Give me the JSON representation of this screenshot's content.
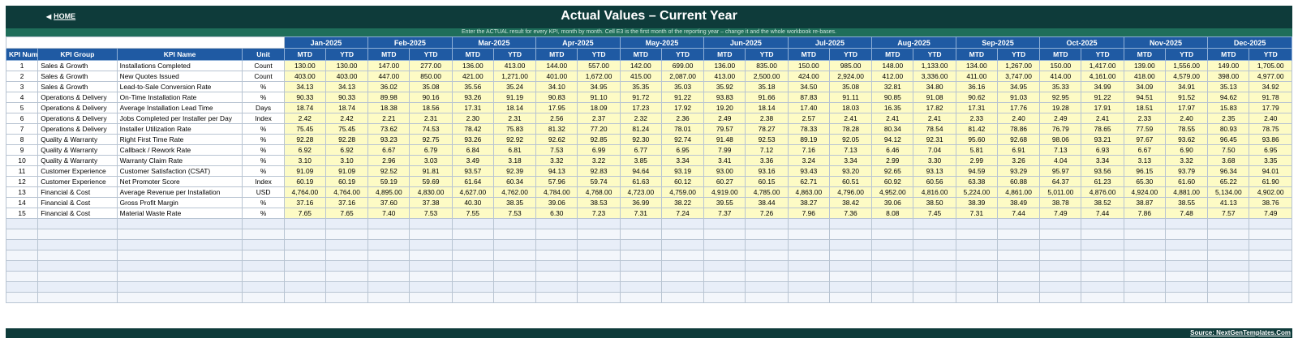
{
  "header": {
    "home_label": "HOME",
    "title": "Actual Values  –  Current Year",
    "subtitle": "Enter the ACTUAL result for every KPI, month by month. Cell E3 is the first month of the reporting year – change it and the whole workbook re-bases."
  },
  "columns": {
    "kpi_number": "KPI Number",
    "kpi_group": "KPI Group",
    "kpi_name": "KPI Name",
    "unit": "Unit",
    "mtd": "MTD",
    "ytd": "YTD"
  },
  "months": [
    "Jan-2025",
    "Feb-2025",
    "Mar-2025",
    "Apr-2025",
    "May-2025",
    "Jun-2025",
    "Jul-2025",
    "Aug-2025",
    "Sep-2025",
    "Oct-2025",
    "Nov-2025",
    "Dec-2025"
  ],
  "rows": [
    {
      "num": "1",
      "group": "Sales & Growth",
      "name": "Installations Completed",
      "unit": "Count",
      "values": [
        "130.00",
        "130.00",
        "147.00",
        "277.00",
        "136.00",
        "413.00",
        "144.00",
        "557.00",
        "142.00",
        "699.00",
        "136.00",
        "835.00",
        "150.00",
        "985.00",
        "148.00",
        "1,133.00",
        "134.00",
        "1,267.00",
        "150.00",
        "1,417.00",
        "139.00",
        "1,556.00",
        "149.00",
        "1,705.00"
      ]
    },
    {
      "num": "2",
      "group": "Sales & Growth",
      "name": "New Quotes Issued",
      "unit": "Count",
      "values": [
        "403.00",
        "403.00",
        "447.00",
        "850.00",
        "421.00",
        "1,271.00",
        "401.00",
        "1,672.00",
        "415.00",
        "2,087.00",
        "413.00",
        "2,500.00",
        "424.00",
        "2,924.00",
        "412.00",
        "3,336.00",
        "411.00",
        "3,747.00",
        "414.00",
        "4,161.00",
        "418.00",
        "4,579.00",
        "398.00",
        "4,977.00"
      ]
    },
    {
      "num": "3",
      "group": "Sales & Growth",
      "name": "Lead-to-Sale Conversion Rate",
      "unit": "%",
      "values": [
        "34.13",
        "34.13",
        "36.02",
        "35.08",
        "35.56",
        "35.24",
        "34.10",
        "34.95",
        "35.35",
        "35.03",
        "35.92",
        "35.18",
        "34.50",
        "35.08",
        "32.81",
        "34.80",
        "36.16",
        "34.95",
        "35.33",
        "34.99",
        "34.09",
        "34.91",
        "35.13",
        "34.92"
      ]
    },
    {
      "num": "4",
      "group": "Operations & Delivery",
      "name": "On-Time Installation Rate",
      "unit": "%",
      "values": [
        "90.33",
        "90.33",
        "89.98",
        "90.16",
        "93.26",
        "91.19",
        "90.83",
        "91.10",
        "91.72",
        "91.22",
        "93.83",
        "91.66",
        "87.83",
        "91.11",
        "90.85",
        "91.08",
        "90.62",
        "91.03",
        "92.95",
        "91.22",
        "94.51",
        "91.52",
        "94.62",
        "91.78"
      ]
    },
    {
      "num": "5",
      "group": "Operations & Delivery",
      "name": "Average Installation Lead Time",
      "unit": "Days",
      "values": [
        "18.74",
        "18.74",
        "18.38",
        "18.56",
        "17.31",
        "18.14",
        "17.95",
        "18.09",
        "17.23",
        "17.92",
        "19.20",
        "18.14",
        "17.40",
        "18.03",
        "16.35",
        "17.82",
        "17.31",
        "17.76",
        "19.28",
        "17.91",
        "18.51",
        "17.97",
        "15.83",
        "17.79"
      ]
    },
    {
      "num": "6",
      "group": "Operations & Delivery",
      "name": "Jobs Completed per Installer per Day",
      "unit": "Index",
      "values": [
        "2.42",
        "2.42",
        "2.21",
        "2.31",
        "2.30",
        "2.31",
        "2.56",
        "2.37",
        "2.32",
        "2.36",
        "2.49",
        "2.38",
        "2.57",
        "2.41",
        "2.41",
        "2.41",
        "2.33",
        "2.40",
        "2.49",
        "2.41",
        "2.33",
        "2.40",
        "2.35",
        "2.40"
      ]
    },
    {
      "num": "7",
      "group": "Operations & Delivery",
      "name": "Installer Utilization Rate",
      "unit": "%",
      "values": [
        "75.45",
        "75.45",
        "73.62",
        "74.53",
        "78.42",
        "75.83",
        "81.32",
        "77.20",
        "81.24",
        "78.01",
        "79.57",
        "78.27",
        "78.33",
        "78.28",
        "80.34",
        "78.54",
        "81.42",
        "78.86",
        "76.79",
        "78.65",
        "77.59",
        "78.55",
        "80.93",
        "78.75"
      ]
    },
    {
      "num": "8",
      "group": "Quality & Warranty",
      "name": "Right First Time Rate",
      "unit": "%",
      "values": [
        "92.28",
        "92.28",
        "93.23",
        "92.75",
        "93.26",
        "92.92",
        "92.62",
        "92.85",
        "92.30",
        "92.74",
        "91.48",
        "92.53",
        "89.19",
        "92.05",
        "94.12",
        "92.31",
        "95.60",
        "92.68",
        "98.06",
        "93.21",
        "97.67",
        "93.62",
        "96.45",
        "93.86"
      ]
    },
    {
      "num": "9",
      "group": "Quality & Warranty",
      "name": "Callback / Rework Rate",
      "unit": "%",
      "values": [
        "6.92",
        "6.92",
        "6.67",
        "6.79",
        "6.84",
        "6.81",
        "7.53",
        "6.99",
        "6.77",
        "6.95",
        "7.99",
        "7.12",
        "7.16",
        "7.13",
        "6.46",
        "7.04",
        "5.81",
        "6.91",
        "7.13",
        "6.93",
        "6.67",
        "6.90",
        "7.50",
        "6.95"
      ]
    },
    {
      "num": "10",
      "group": "Quality & Warranty",
      "name": "Warranty Claim Rate",
      "unit": "%",
      "values": [
        "3.10",
        "3.10",
        "2.96",
        "3.03",
        "3.49",
        "3.18",
        "3.32",
        "3.22",
        "3.85",
        "3.34",
        "3.41",
        "3.36",
        "3.24",
        "3.34",
        "2.99",
        "3.30",
        "2.99",
        "3.26",
        "4.04",
        "3.34",
        "3.13",
        "3.32",
        "3.68",
        "3.35"
      ]
    },
    {
      "num": "11",
      "group": "Customer Experience",
      "name": "Customer Satisfaction (CSAT)",
      "unit": "%",
      "values": [
        "91.09",
        "91.09",
        "92.52",
        "91.81",
        "93.57",
        "92.39",
        "94.13",
        "92.83",
        "94.64",
        "93.19",
        "93.00",
        "93.16",
        "93.43",
        "93.20",
        "92.65",
        "93.13",
        "94.59",
        "93.29",
        "95.97",
        "93.56",
        "96.15",
        "93.79",
        "96.34",
        "94.01"
      ]
    },
    {
      "num": "12",
      "group": "Customer Experience",
      "name": "Net Promoter Score",
      "unit": "Index",
      "values": [
        "60.19",
        "60.19",
        "59.19",
        "59.69",
        "61.64",
        "60.34",
        "57.96",
        "59.74",
        "61.63",
        "60.12",
        "60.27",
        "60.15",
        "62.71",
        "60.51",
        "60.92",
        "60.56",
        "63.38",
        "60.88",
        "64.37",
        "61.23",
        "65.30",
        "61.60",
        "65.22",
        "61.90"
      ]
    },
    {
      "num": "13",
      "group": "Financial & Cost",
      "name": "Average Revenue per Installation",
      "unit": "USD",
      "values": [
        "4,764.00",
        "4,764.00",
        "4,895.00",
        "4,830.00",
        "4,627.00",
        "4,762.00",
        "4,784.00",
        "4,768.00",
        "4,723.00",
        "4,759.00",
        "4,919.00",
        "4,785.00",
        "4,863.00",
        "4,796.00",
        "4,952.00",
        "4,816.00",
        "5,224.00",
        "4,861.00",
        "5,011.00",
        "4,876.00",
        "4,924.00",
        "4,881.00",
        "5,134.00",
        "4,902.00"
      ]
    },
    {
      "num": "14",
      "group": "Financial & Cost",
      "name": "Gross Profit Margin",
      "unit": "%",
      "values": [
        "37.16",
        "37.16",
        "37.60",
        "37.38",
        "40.30",
        "38.35",
        "39.06",
        "38.53",
        "36.99",
        "38.22",
        "39.55",
        "38.44",
        "38.27",
        "38.42",
        "39.06",
        "38.50",
        "38.39",
        "38.49",
        "38.78",
        "38.52",
        "38.87",
        "38.55",
        "41.13",
        "38.76"
      ]
    },
    {
      "num": "15",
      "group": "Financial & Cost",
      "name": "Material Waste Rate",
      "unit": "%",
      "values": [
        "7.65",
        "7.65",
        "7.40",
        "7.53",
        "7.55",
        "7.53",
        "6.30",
        "7.23",
        "7.31",
        "7.24",
        "7.37",
        "7.26",
        "7.96",
        "7.36",
        "8.08",
        "7.45",
        "7.31",
        "7.44",
        "7.49",
        "7.44",
        "7.86",
        "7.48",
        "7.57",
        "7.49"
      ]
    }
  ],
  "empty_row_count": 8,
  "footer": {
    "source_label": "Source: NextGenTemplates.Com"
  },
  "colors": {
    "title_bar": "#0e3b3a",
    "sub_bar": "#1f6e5a",
    "header_blue": "#1f5aa3",
    "value_cell": "#fdfbc5"
  }
}
